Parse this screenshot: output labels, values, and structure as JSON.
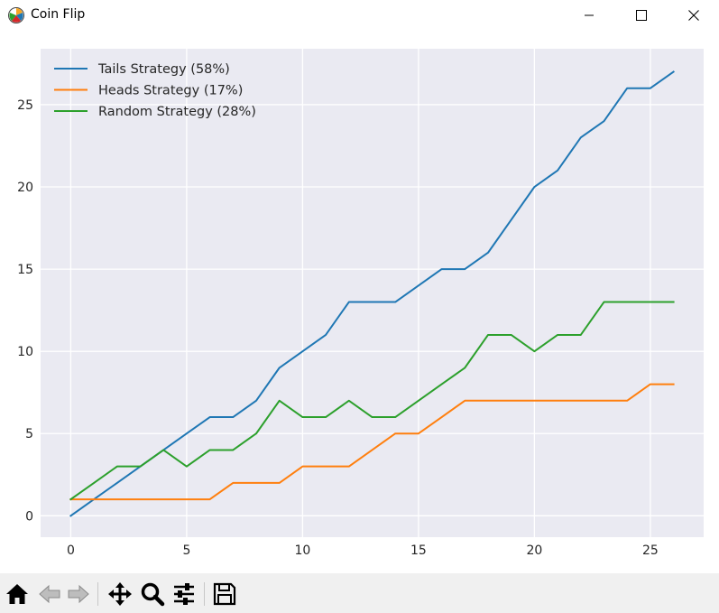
{
  "window": {
    "title": "Coin Flip",
    "icons": {
      "app": "matplotlib-icon",
      "minimize": "minimize-icon",
      "maximize": "maximize-icon",
      "close": "close-icon"
    }
  },
  "toolbar": {
    "buttons": [
      {
        "name": "home",
        "icon": "home-icon"
      },
      {
        "name": "back",
        "icon": "back-arrow-icon"
      },
      {
        "name": "forward",
        "icon": "forward-arrow-icon"
      },
      {
        "name": "pan",
        "icon": "pan-icon"
      },
      {
        "name": "zoom",
        "icon": "zoom-icon"
      },
      {
        "name": "configure",
        "icon": "configure-subplots-icon"
      },
      {
        "name": "save",
        "icon": "save-icon"
      }
    ]
  },
  "chart_data": {
    "type": "line",
    "style": "seaborn-darkgrid",
    "background": "#eaeaf2",
    "grid": true,
    "legend_position": "top-left",
    "x": [
      0,
      1,
      2,
      3,
      4,
      5,
      6,
      7,
      8,
      9,
      10,
      11,
      12,
      13,
      14,
      15,
      16,
      17,
      18,
      19,
      20,
      21,
      22,
      23,
      24,
      25,
      26
    ],
    "xlim": [
      -1.3,
      27.3
    ],
    "ylim": [
      -1.3,
      28.4
    ],
    "xticks": [
      0,
      5,
      10,
      15,
      20,
      25
    ],
    "yticks": [
      0,
      5,
      10,
      15,
      20,
      25
    ],
    "series": [
      {
        "name": "Tails Strategy (58%)",
        "color": "#1f77b4",
        "values": [
          0,
          1,
          2,
          3,
          4,
          5,
          6,
          6,
          7,
          9,
          10,
          11,
          13,
          13,
          13,
          14,
          15,
          15,
          16,
          18,
          20,
          21,
          23,
          24,
          26,
          26,
          27
        ]
      },
      {
        "name": "Heads Strategy (17%)",
        "color": "#ff7f0e",
        "values": [
          1,
          1,
          1,
          1,
          1,
          1,
          1,
          2,
          2,
          2,
          3,
          3,
          3,
          4,
          5,
          5,
          6,
          7,
          7,
          7,
          7,
          7,
          7,
          7,
          7,
          8,
          8
        ]
      },
      {
        "name": "Random Strategy (28%)",
        "color": "#2ca02c",
        "values": [
          1,
          2,
          3,
          3,
          4,
          3,
          4,
          4,
          5,
          7,
          6,
          6,
          7,
          6,
          6,
          7,
          8,
          9,
          11,
          11,
          10,
          11,
          11,
          13,
          13,
          13,
          13
        ]
      }
    ]
  }
}
